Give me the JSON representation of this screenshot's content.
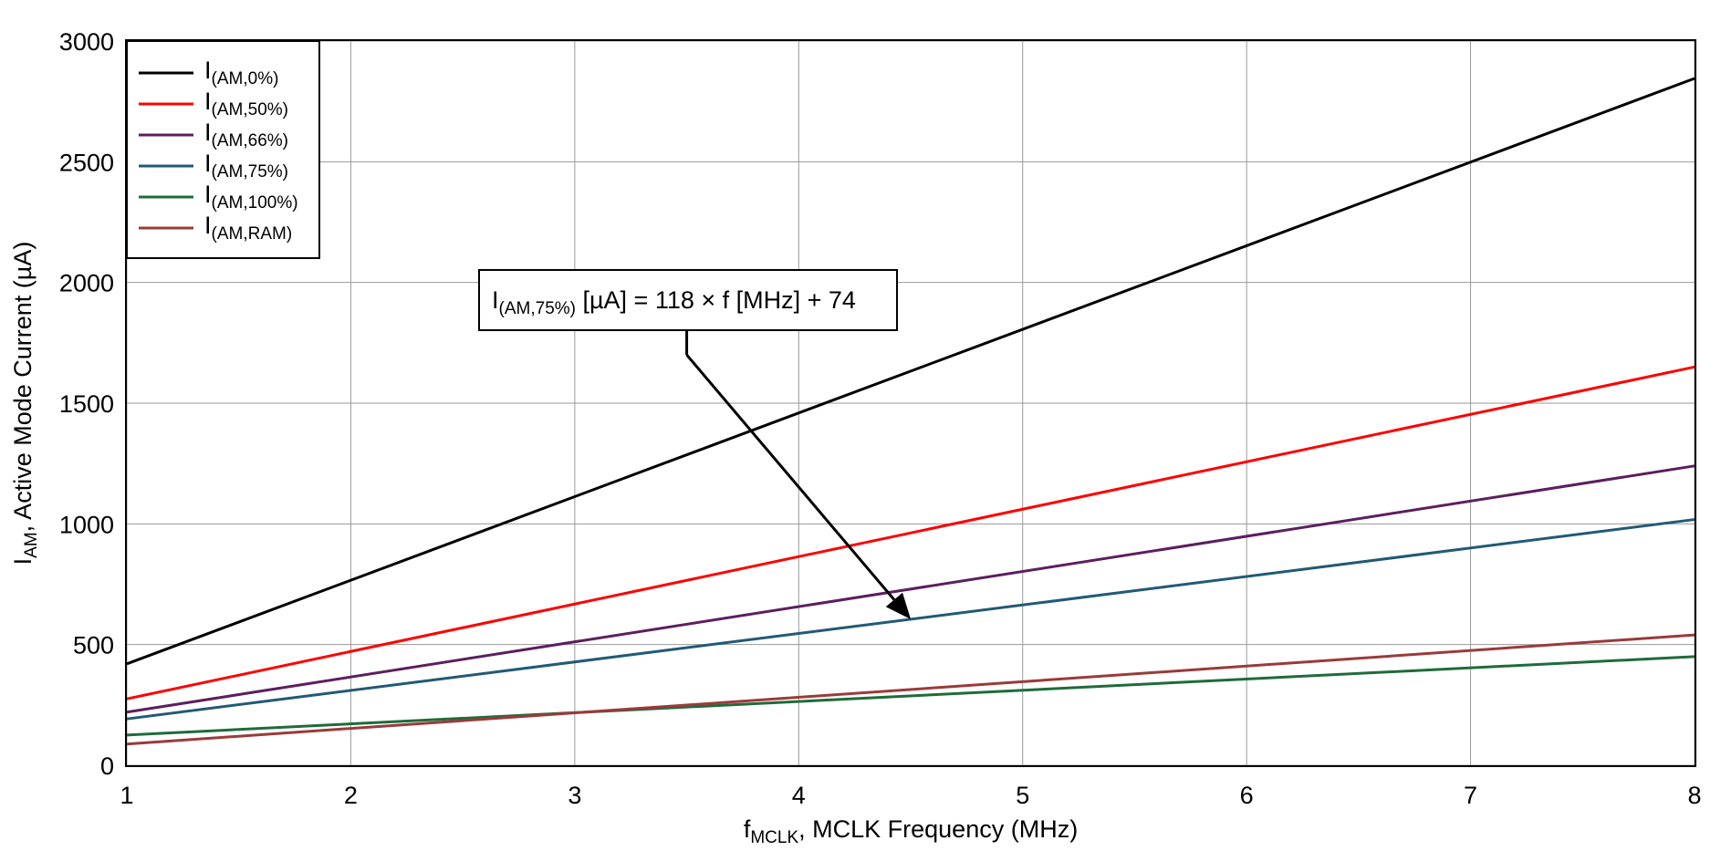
{
  "chart_data": {
    "type": "line",
    "title": "",
    "xlabel": {
      "main": "f",
      "sub": "MCLK",
      "rest": ", MCLK Frequency (MHz)"
    },
    "ylabel": {
      "main": "I",
      "sub": "AM",
      "rest": ", Active Mode Current (µA)"
    },
    "xlim": [
      1,
      8
    ],
    "ylim": [
      0,
      3000
    ],
    "xticks": [
      1,
      2,
      3,
      4,
      5,
      6,
      7,
      8
    ],
    "yticks": [
      0,
      500,
      1000,
      1500,
      2000,
      2500,
      3000
    ],
    "grid": true,
    "legend_position": "top-left",
    "series": [
      {
        "name": "I(AM,0%)",
        "legend_main": "I",
        "legend_sub": "(AM,0%)",
        "color": "#000000",
        "x": [
          1,
          8
        ],
        "y": [
          420,
          2845
        ]
      },
      {
        "name": "I(AM,50%)",
        "legend_main": "I",
        "legend_sub": "(AM,50%)",
        "color": "#ff0000",
        "x": [
          1,
          8
        ],
        "y": [
          275,
          1650
        ]
      },
      {
        "name": "I(AM,66%)",
        "legend_main": "I",
        "legend_sub": "(AM,66%)",
        "color": "#5b1f5e",
        "x": [
          1,
          8
        ],
        "y": [
          220,
          1240
        ]
      },
      {
        "name": "I(AM,75%)",
        "legend_main": "I",
        "legend_sub": "(AM,75%)",
        "color": "#215a75",
        "x": [
          1,
          8
        ],
        "y": [
          192,
          1018
        ]
      },
      {
        "name": "I(AM,100%)",
        "legend_main": "I",
        "legend_sub": "(AM,100%)",
        "color": "#1f6b3a",
        "x": [
          1,
          8
        ],
        "y": [
          125,
          450
        ]
      },
      {
        "name": "I(AM,RAM)",
        "legend_main": "I",
        "legend_sub": "(AM,RAM)",
        "color": "#9b3a3a",
        "x": [
          1,
          8
        ],
        "y": [
          88,
          540
        ]
      }
    ],
    "annotation": {
      "main": "I",
      "sub": "(AM,75%)",
      "rest": " [µA] = 118 × f [MHz] + 74",
      "arrow_from": {
        "x": 3.5,
        "y": 1700
      },
      "arrow_to": {
        "x": 4.5,
        "y": 605
      }
    }
  }
}
